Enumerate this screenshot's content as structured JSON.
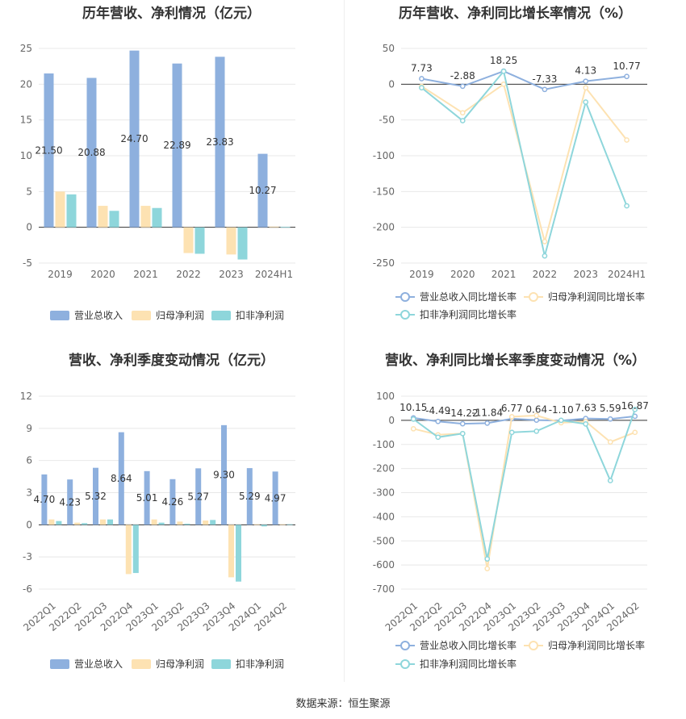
{
  "footer": "数据来源：恒生聚源",
  "colors": {
    "revenue": "#8eb0de",
    "parent_np": "#fde2b2",
    "deducted_np": "#8ed6db",
    "grid": "#e8e8e8",
    "axis": "#333333"
  },
  "chart_data": [
    {
      "id": "annual-amounts",
      "type": "bar",
      "title": "历年营收、净利情况（亿元）",
      "categories": [
        "2019",
        "2020",
        "2021",
        "2022",
        "2023",
        "2024H1"
      ],
      "series": [
        {
          "name": "营业总收入",
          "values": [
            21.5,
            20.88,
            24.7,
            22.89,
            23.83,
            10.27
          ],
          "labels": [
            "21.50",
            "20.88",
            "24.70",
            "22.89",
            "23.83",
            "10.27"
          ]
        },
        {
          "name": "归母净利润",
          "values": [
            5.0,
            3.0,
            3.0,
            -3.6,
            -3.8,
            0.1
          ]
        },
        {
          "name": "扣非净利润",
          "values": [
            4.6,
            2.3,
            2.7,
            -3.7,
            -4.5,
            0.05
          ]
        }
      ],
      "ylim": [
        -5,
        25
      ],
      "yticks": [
        "-5",
        "0",
        "5",
        "10",
        "15",
        "20",
        "25"
      ],
      "grid": true,
      "legend": "bottom"
    },
    {
      "id": "annual-growth",
      "type": "line",
      "title": "历年营收、净利同比增长率情况（%）",
      "categories": [
        "2019",
        "2020",
        "2021",
        "2022",
        "2023",
        "2024H1"
      ],
      "series": [
        {
          "name": "营业总收入同比增长率",
          "values": [
            7.73,
            -2.88,
            18.25,
            -7.33,
            4.13,
            10.77
          ],
          "labels": [
            "7.73",
            "-2.88",
            "18.25",
            "-7.33",
            "4.13",
            "10.77"
          ]
        },
        {
          "name": "归母净利润同比增长率",
          "values": [
            -3,
            -40,
            0,
            -220,
            -5,
            -78
          ]
        },
        {
          "name": "扣非净利润同比增长率",
          "values": [
            -5,
            -51,
            18,
            -240,
            -25,
            -170
          ]
        }
      ],
      "ylim": [
        -250,
        50
      ],
      "yticks": [
        "-250",
        "-200",
        "-150",
        "-100",
        "-50",
        "0",
        "50"
      ],
      "grid": true,
      "legend": "bottom"
    },
    {
      "id": "quarterly-amounts",
      "type": "bar",
      "title": "营收、净利季度变动情况（亿元）",
      "categories": [
        "2022Q1",
        "2022Q2",
        "2022Q3",
        "2022Q4",
        "2023Q1",
        "2023Q2",
        "2023Q3",
        "2023Q4",
        "2024Q1",
        "2024Q2"
      ],
      "series": [
        {
          "name": "营业总收入",
          "values": [
            4.7,
            4.23,
            5.32,
            8.64,
            5.01,
            4.26,
            5.27,
            9.3,
            5.29,
            4.97
          ],
          "labels": [
            "4.70",
            "4.23",
            "5.32",
            "8.64",
            "5.01",
            "4.26",
            "5.27",
            "9.30",
            "5.29",
            "4.97"
          ]
        },
        {
          "name": "归母净利润",
          "values": [
            0.5,
            0.2,
            0.5,
            -4.6,
            0.5,
            0.3,
            0.4,
            -4.9,
            0.05,
            0.05
          ]
        },
        {
          "name": "扣非净利润",
          "values": [
            0.35,
            0.15,
            0.5,
            -4.5,
            0.2,
            0.1,
            0.45,
            -5.3,
            -0.15,
            0.05
          ]
        }
      ],
      "ylim": [
        -6,
        12
      ],
      "yticks": [
        "-6",
        "-3",
        "0",
        "3",
        "6",
        "9",
        "12"
      ],
      "grid": true,
      "legend": "bottom"
    },
    {
      "id": "quarterly-growth",
      "type": "line",
      "title": "营收、净利同比增长率季度变动情况（%）",
      "categories": [
        "2022Q1",
        "2022Q2",
        "2022Q3",
        "2022Q4",
        "2023Q1",
        "2023Q2",
        "2023Q3",
        "2023Q4",
        "2024Q1",
        "2024Q2"
      ],
      "series": [
        {
          "name": "营业总收入同比增长率",
          "values": [
            10.15,
            -4.49,
            -14.22,
            -11.84,
            6.77,
            0.64,
            -1.1,
            7.63,
            5.59,
            16.87
          ],
          "labels": [
            "10.15",
            "-4.49",
            "-14.22",
            "-11.84",
            "6.77",
            "0.64",
            "-1.10",
            "7.63",
            "5.59",
            "16.87"
          ]
        },
        {
          "name": "归母净利润同比增长率",
          "values": [
            -35,
            -60,
            -55,
            -615,
            15,
            20,
            -10,
            -5,
            -90,
            -50
          ]
        },
        {
          "name": "扣非净利润同比增长率",
          "values": [
            5,
            -70,
            -55,
            -575,
            -50,
            -45,
            0,
            -15,
            -250,
            45
          ]
        }
      ],
      "ylim": [
        -700,
        100
      ],
      "yticks": [
        "-700",
        "-600",
        "-500",
        "-400",
        "-300",
        "-200",
        "-100",
        "0",
        "100"
      ],
      "grid": true,
      "legend": "bottom"
    }
  ]
}
